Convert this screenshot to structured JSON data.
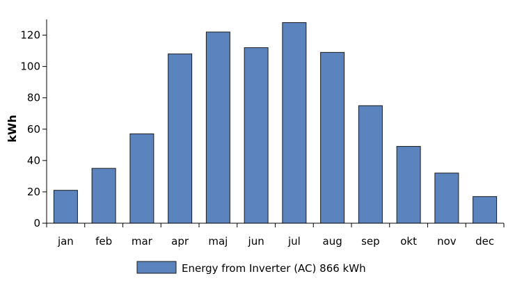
{
  "colors": {
    "bar_fill": "#5b84be",
    "bar_stroke": "#1a1a1a",
    "axis": "#000000",
    "background": "#ffffff"
  },
  "chart_data": {
    "type": "bar",
    "title": "",
    "xlabel": "",
    "ylabel": "kWh",
    "ylim": [
      0,
      130
    ],
    "yticks": [
      0,
      20,
      40,
      60,
      80,
      100,
      120
    ],
    "grid": false,
    "legend_position": "bottom",
    "categories": [
      "jan",
      "feb",
      "mar",
      "apr",
      "maj",
      "jun",
      "jul",
      "aug",
      "sep",
      "okt",
      "nov",
      "dec"
    ],
    "series": [
      {
        "name": "Energy from Inverter (AC) 866 kWh",
        "values": [
          21,
          35,
          57,
          108,
          122,
          112,
          128,
          109,
          75,
          49,
          32,
          17
        ]
      }
    ]
  }
}
